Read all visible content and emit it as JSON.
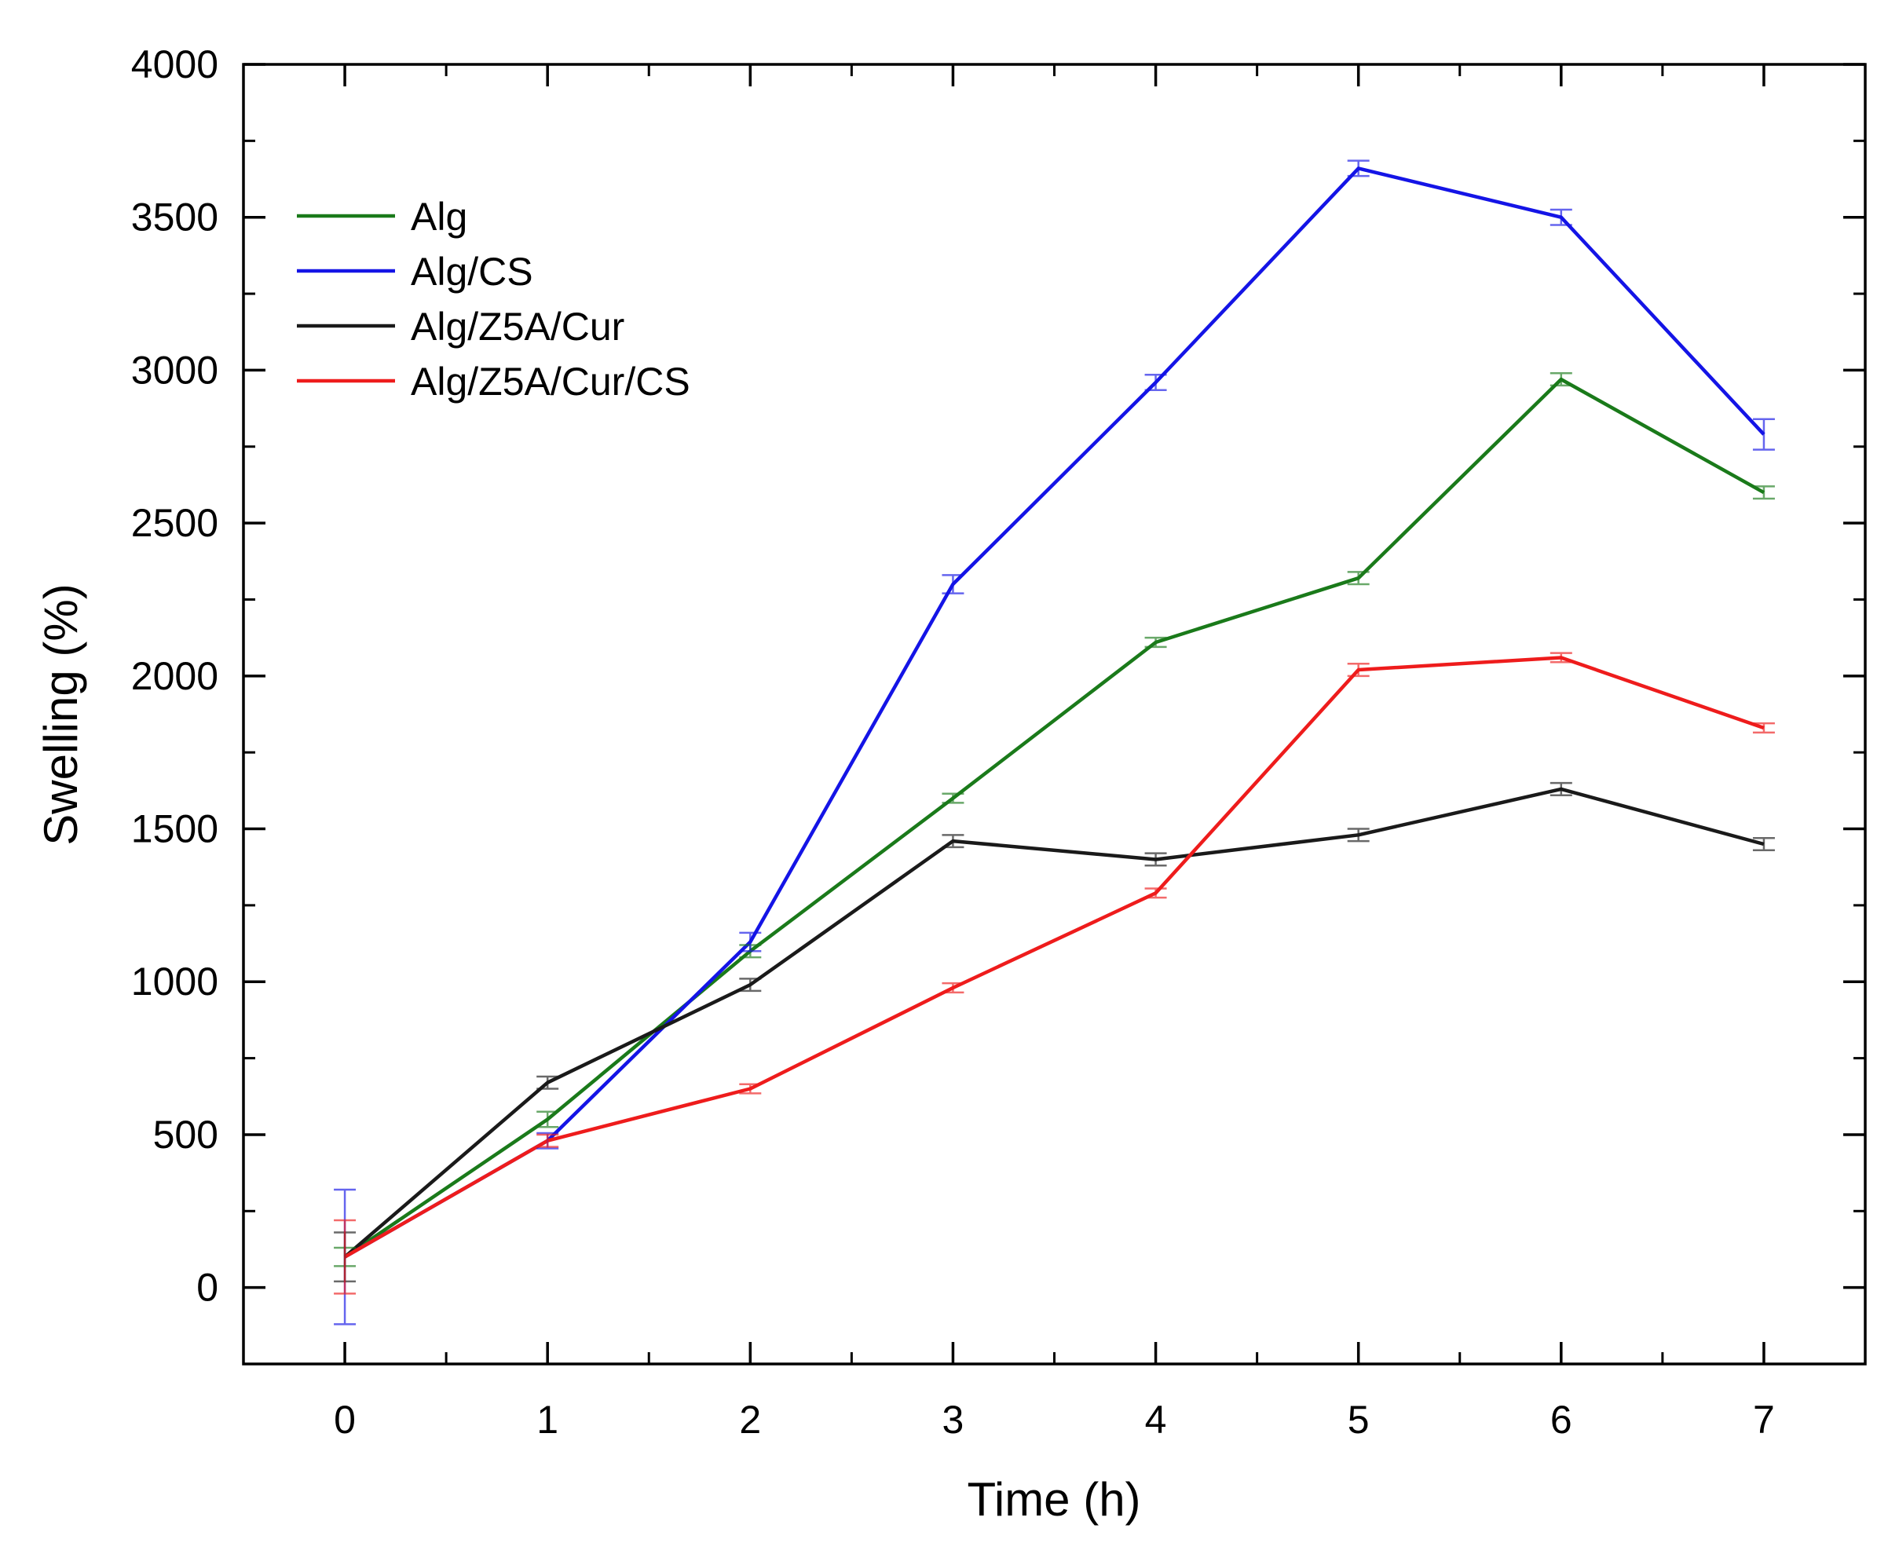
{
  "chart_data": {
    "type": "line",
    "title": "",
    "xlabel": "Time (h)",
    "ylabel": "Swelling (%)",
    "xlim": [
      -0.5,
      7.5
    ],
    "ylim": [
      -250,
      4000
    ],
    "x": [
      0,
      1,
      2,
      3,
      4,
      5,
      6,
      7
    ],
    "xticks": [
      0,
      1,
      2,
      3,
      4,
      5,
      6,
      7
    ],
    "yticks": [
      0,
      500,
      1000,
      1500,
      2000,
      2500,
      3000,
      3500,
      4000
    ],
    "xtick_labels": [
      "0",
      "1",
      "2",
      "3",
      "4",
      "5",
      "6",
      "7"
    ],
    "ytick_labels": [
      "0",
      "500",
      "1000",
      "1500",
      "2000",
      "2500",
      "3000",
      "3500",
      "4000"
    ],
    "grid": false,
    "legend_position": "top-left",
    "series": [
      {
        "name": "Alg",
        "color": "#1a7a1a",
        "values": [
          100,
          550,
          1100,
          1600,
          2110,
          2320,
          2970,
          2600
        ],
        "errors": [
          30,
          25,
          20,
          15,
          15,
          20,
          20,
          20
        ]
      },
      {
        "name": "Alg/CS",
        "color": "#1414e6",
        "values": [
          100,
          480,
          1130,
          2300,
          2960,
          3660,
          3500,
          2790
        ],
        "errors": [
          220,
          25,
          30,
          30,
          25,
          25,
          25,
          50
        ]
      },
      {
        "name": "Alg/Z5A/Cur",
        "color": "#1a1a1a",
        "values": [
          100,
          670,
          990,
          1460,
          1400,
          1480,
          1630,
          1450
        ],
        "errors": [
          80,
          20,
          20,
          20,
          20,
          20,
          20,
          20
        ]
      },
      {
        "name": "Alg/Z5A/Cur/CS",
        "color": "#ee1c1c",
        "values": [
          100,
          480,
          650,
          980,
          1290,
          2020,
          2060,
          1830
        ],
        "errors": [
          120,
          20,
          15,
          15,
          15,
          20,
          15,
          15
        ]
      }
    ]
  }
}
